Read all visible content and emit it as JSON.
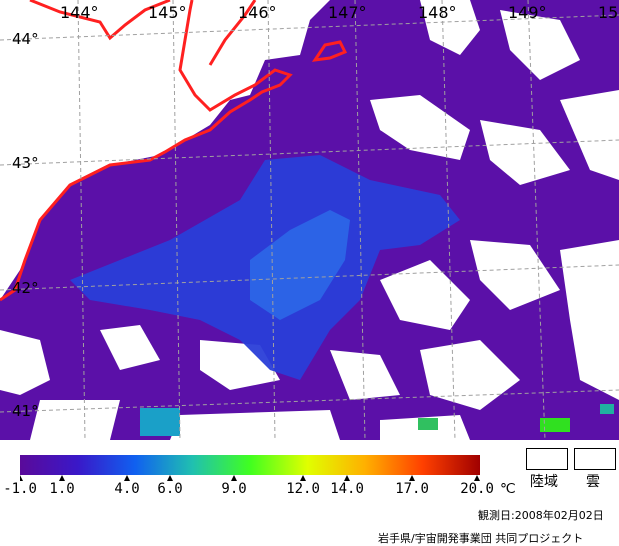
{
  "map": {
    "lon_labels": [
      "144°",
      "145°",
      "146°",
      "147°",
      "148°",
      "149°",
      "15"
    ],
    "lat_labels": [
      "44°",
      "43°",
      "42°",
      "41°"
    ]
  },
  "legend": {
    "colorbar_ticks": [
      "-1.0",
      "1.0",
      "4.0",
      "6.0",
      "9.0",
      "12.0",
      "14.0",
      "17.0",
      "20.0"
    ],
    "unit": "℃",
    "colors": [
      "#5a0a9a",
      "#3a18c8",
      "#1060f0",
      "#20c0b0",
      "#40ff20",
      "#e0ff00",
      "#ffb000",
      "#ff4000",
      "#a00000"
    ],
    "land_label": "陸域",
    "cloud_label": "雲"
  },
  "footer": {
    "observation_date": "観測日:2008年02月02日",
    "credit": "岩手県/宇宙開発事業団 共同プロジェクト"
  }
}
